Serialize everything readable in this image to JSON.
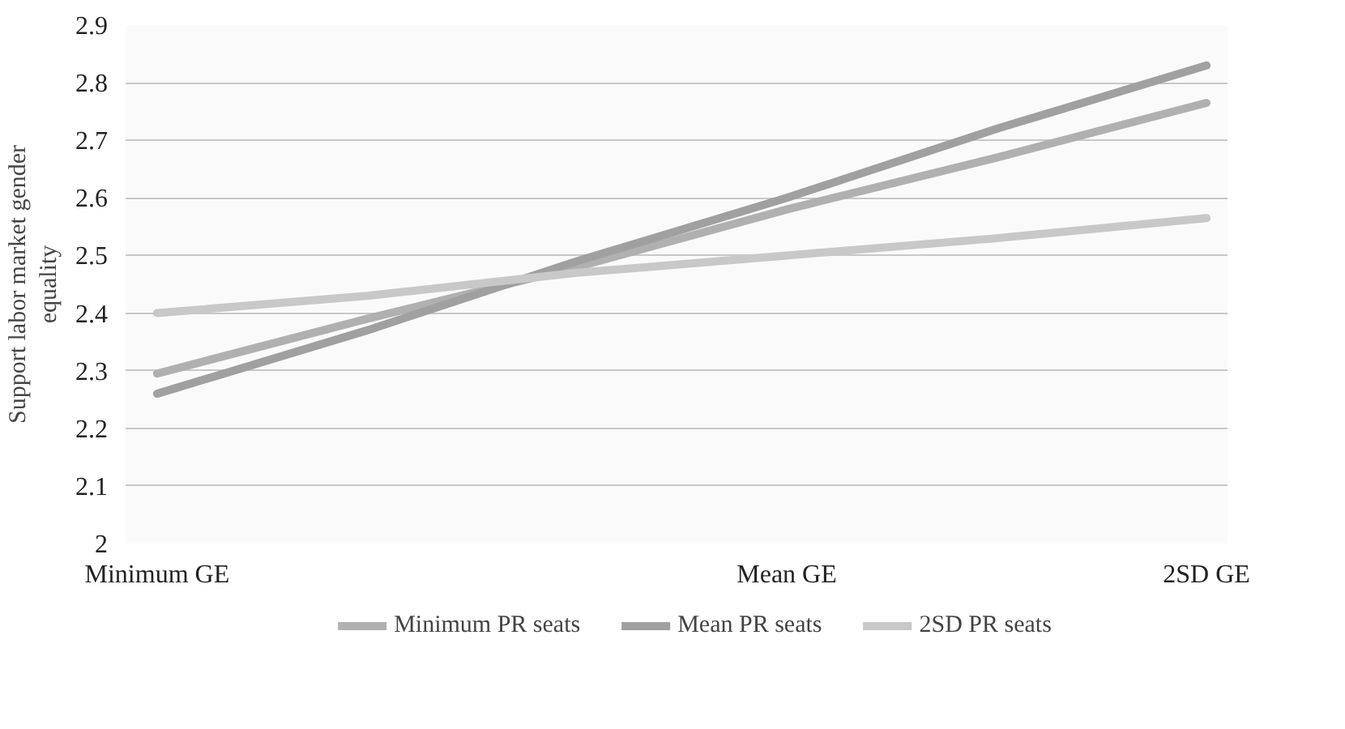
{
  "chart_data": {
    "type": "line",
    "ylabel": "Support labor market gender equality",
    "categories": [
      "Minimum GE",
      null,
      null,
      "Mean GE",
      null,
      "2SD GE"
    ],
    "ylim": [
      2,
      2.9
    ],
    "yticks": [
      2,
      2.1,
      2.2,
      2.3,
      2.4,
      2.5,
      2.6,
      2.7,
      2.8,
      2.9
    ],
    "series": [
      {
        "name": "Minimum PR seats",
        "color": "#b0b0b0",
        "values": [
          2.295,
          2.39,
          2.48,
          2.58,
          2.67,
          2.765
        ]
      },
      {
        "name": "Mean PR seats",
        "color": "#a0a0a0",
        "values": [
          2.26,
          2.37,
          2.49,
          2.6,
          2.72,
          2.83
        ]
      },
      {
        "name": "2SD PR seats",
        "color": "#c8c8c8",
        "values": [
          2.4,
          2.43,
          2.47,
          2.5,
          2.53,
          2.565
        ]
      }
    ],
    "grid": "y",
    "legend": "bottom",
    "marker": "none",
    "line_style": "solid"
  }
}
